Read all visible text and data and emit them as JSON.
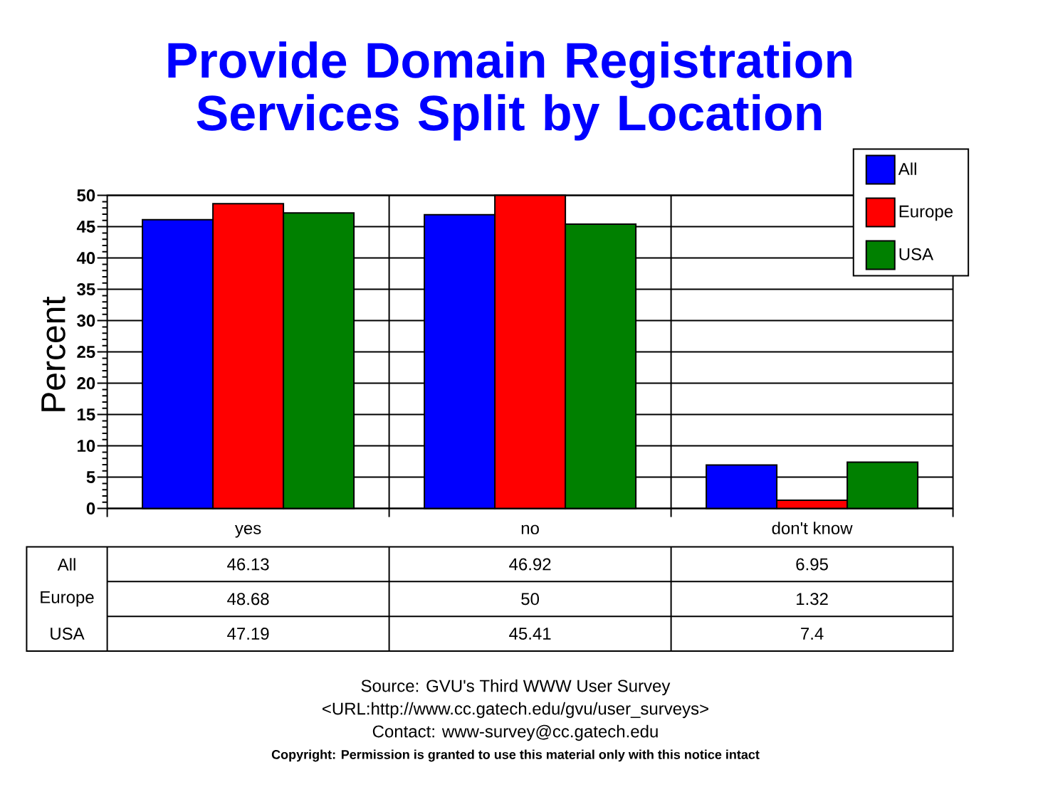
{
  "chart_data": {
    "type": "bar",
    "title": "Provide Domain Registration Services Split by Location",
    "ylabel": "Percent",
    "categories": [
      "yes",
      "no",
      "don't know"
    ],
    "series": [
      {
        "name": "All",
        "color": "#0000ff",
        "values": [
          46.13,
          46.92,
          6.95
        ]
      },
      {
        "name": "Europe",
        "color": "#ff0000",
        "values": [
          48.68,
          50,
          1.32
        ]
      },
      {
        "name": "USA",
        "color": "#008000",
        "values": [
          47.19,
          45.41,
          7.4
        ]
      }
    ],
    "ylim": [
      0,
      50
    ],
    "yticks": [
      0,
      5,
      10,
      15,
      20,
      25,
      30,
      35,
      40,
      45,
      50
    ],
    "grid": true,
    "legend": "top right",
    "data_labels": true,
    "annotations": [
      "Source: GVU's Third WWW User Survey",
      "<URL:http://www.cc.gatech.edu/gvu/user_surveys>",
      "Contact: www-survey@cc.gatech.edu",
      "Copyright: Permission is granted to use this material only with this notice intact"
    ]
  }
}
